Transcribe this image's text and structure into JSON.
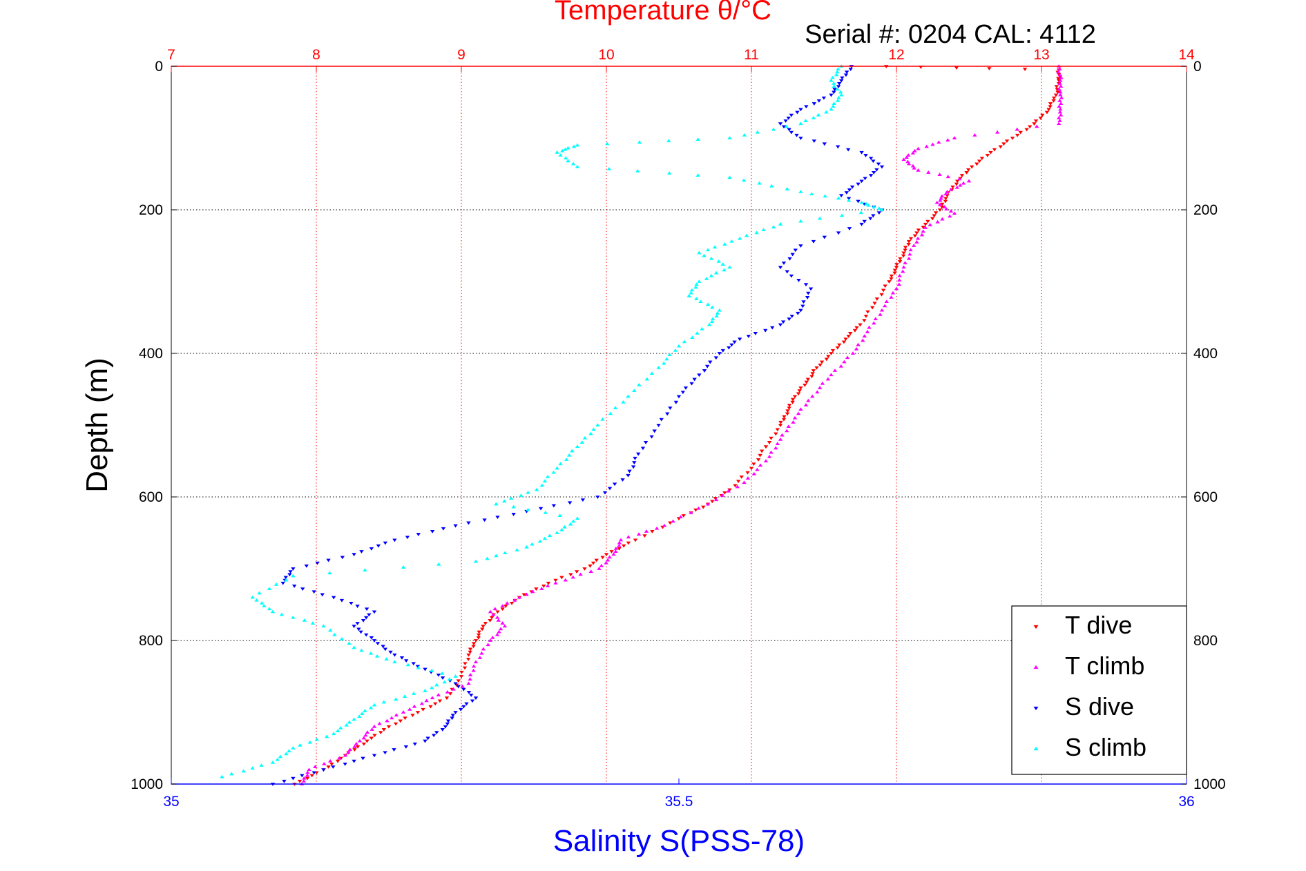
{
  "chart_data": {
    "type": "scatter",
    "title": "Temperature θ/°C",
    "subtitle": "Serial #: 0204  CAL: 4112",
    "ylabel": "Depth (m)",
    "xlabel_bottom": "Salinity S(PSS-78)",
    "x_top_axis": {
      "label": "Temperature θ/°C",
      "range": [
        7,
        14
      ],
      "ticks": [
        "7",
        "8",
        "9",
        "10",
        "11",
        "12",
        "13",
        "14"
      ],
      "color": "#ff0000"
    },
    "x_bottom_axis": {
      "label": "Salinity S(PSS-78)",
      "range": [
        35,
        36
      ],
      "ticks": [
        "35",
        "35.5",
        "36"
      ],
      "color": "#0000ff"
    },
    "y_axis": {
      "label": "Depth (m)",
      "range": [
        0,
        1000
      ],
      "reversed": true,
      "ticks": [
        "0",
        "200",
        "400",
        "600",
        "800",
        "1000"
      ]
    },
    "grid": true,
    "legend_position": "bottom-right",
    "series": [
      {
        "name": "T dive",
        "axis": "temperature",
        "color": "#ff0000",
        "marker": "down-triangle",
        "points": [
          [
            11.93,
            0
          ],
          [
            13.12,
            5
          ],
          [
            13.12,
            20
          ],
          [
            13.1,
            40
          ],
          [
            13.05,
            60
          ],
          [
            12.95,
            80
          ],
          [
            12.8,
            100
          ],
          [
            12.65,
            120
          ],
          [
            12.52,
            140
          ],
          [
            12.42,
            160
          ],
          [
            12.35,
            180
          ],
          [
            12.3,
            200
          ],
          [
            12.2,
            220
          ],
          [
            12.1,
            240
          ],
          [
            12.05,
            260
          ],
          [
            12.0,
            280
          ],
          [
            11.95,
            300
          ],
          [
            11.85,
            330
          ],
          [
            11.75,
            360
          ],
          [
            11.65,
            380
          ],
          [
            11.55,
            400
          ],
          [
            11.45,
            420
          ],
          [
            11.38,
            440
          ],
          [
            11.3,
            460
          ],
          [
            11.25,
            480
          ],
          [
            11.2,
            500
          ],
          [
            11.1,
            530
          ],
          [
            11.0,
            560
          ],
          [
            10.85,
            590
          ],
          [
            10.7,
            610
          ],
          [
            10.5,
            630
          ],
          [
            10.2,
            660
          ],
          [
            10.0,
            680
          ],
          [
            9.85,
            700
          ],
          [
            9.6,
            720
          ],
          [
            9.4,
            740
          ],
          [
            9.25,
            760
          ],
          [
            9.15,
            780
          ],
          [
            9.1,
            800
          ],
          [
            9.05,
            820
          ],
          [
            9.0,
            850
          ],
          [
            8.9,
            880
          ],
          [
            8.7,
            900
          ],
          [
            8.5,
            920
          ],
          [
            8.35,
            940
          ],
          [
            8.2,
            960
          ],
          [
            8.05,
            980
          ],
          [
            7.85,
            1000
          ]
        ]
      },
      {
        "name": "T climb",
        "axis": "temperature",
        "color": "#ff00ff",
        "marker": "up-triangle",
        "points": [
          [
            13.12,
            0
          ],
          [
            13.13,
            20
          ],
          [
            13.13,
            40
          ],
          [
            13.13,
            60
          ],
          [
            13.12,
            80
          ],
          [
            12.4,
            100
          ],
          [
            12.15,
            115
          ],
          [
            12.05,
            130
          ],
          [
            12.15,
            145
          ],
          [
            12.5,
            160
          ],
          [
            12.35,
            175
          ],
          [
            12.28,
            190
          ],
          [
            12.4,
            205
          ],
          [
            12.2,
            225
          ],
          [
            12.12,
            250
          ],
          [
            12.05,
            280
          ],
          [
            12.0,
            310
          ],
          [
            11.9,
            340
          ],
          [
            11.8,
            370
          ],
          [
            11.7,
            400
          ],
          [
            11.55,
            430
          ],
          [
            11.42,
            460
          ],
          [
            11.3,
            490
          ],
          [
            11.2,
            520
          ],
          [
            11.1,
            550
          ],
          [
            10.95,
            580
          ],
          [
            10.7,
            610
          ],
          [
            10.4,
            640
          ],
          [
            10.1,
            660
          ],
          [
            10.05,
            680
          ],
          [
            9.95,
            700
          ],
          [
            9.65,
            720
          ],
          [
            9.4,
            740
          ],
          [
            9.2,
            760
          ],
          [
            9.3,
            780
          ],
          [
            9.2,
            800
          ],
          [
            9.1,
            830
          ],
          [
            9.05,
            860
          ],
          [
            8.8,
            880
          ],
          [
            8.6,
            900
          ],
          [
            8.4,
            920
          ],
          [
            8.3,
            940
          ],
          [
            8.2,
            960
          ],
          [
            7.95,
            980
          ],
          [
            7.9,
            1000
          ]
        ]
      },
      {
        "name": "S dive",
        "axis": "salinity",
        "color": "#0000ff",
        "marker": "down-triangle",
        "points": [
          [
            35.67,
            0
          ],
          [
            35.66,
            20
          ],
          [
            35.65,
            40
          ],
          [
            35.62,
            60
          ],
          [
            35.6,
            80
          ],
          [
            35.62,
            100
          ],
          [
            35.68,
            120
          ],
          [
            35.7,
            140
          ],
          [
            35.68,
            160
          ],
          [
            35.66,
            180
          ],
          [
            35.7,
            200
          ],
          [
            35.68,
            220
          ],
          [
            35.62,
            250
          ],
          [
            35.6,
            280
          ],
          [
            35.63,
            310
          ],
          [
            35.62,
            340
          ],
          [
            35.6,
            360
          ],
          [
            35.56,
            380
          ],
          [
            35.54,
            400
          ],
          [
            35.52,
            430
          ],
          [
            35.5,
            460
          ],
          [
            35.48,
            500
          ],
          [
            35.46,
            540
          ],
          [
            35.45,
            570
          ],
          [
            35.42,
            600
          ],
          [
            35.35,
            620
          ],
          [
            35.28,
            640
          ],
          [
            35.22,
            660
          ],
          [
            35.18,
            680
          ],
          [
            35.12,
            700
          ],
          [
            35.11,
            720
          ],
          [
            35.16,
            740
          ],
          [
            35.2,
            760
          ],
          [
            35.18,
            780
          ],
          [
            35.2,
            800
          ],
          [
            35.22,
            820
          ],
          [
            35.25,
            840
          ],
          [
            35.28,
            860
          ],
          [
            35.3,
            880
          ],
          [
            35.28,
            900
          ],
          [
            35.27,
            920
          ],
          [
            35.25,
            940
          ],
          [
            35.2,
            960
          ],
          [
            35.15,
            980
          ],
          [
            35.1,
            1000
          ]
        ]
      },
      {
        "name": "S climb",
        "axis": "salinity",
        "color": "#00ffff",
        "marker": "up-triangle",
        "points": [
          [
            35.66,
            0
          ],
          [
            35.65,
            20
          ],
          [
            35.66,
            40
          ],
          [
            35.65,
            60
          ],
          [
            35.62,
            80
          ],
          [
            35.55,
            100
          ],
          [
            35.4,
            110
          ],
          [
            35.38,
            120
          ],
          [
            35.4,
            140
          ],
          [
            35.55,
            155
          ],
          [
            35.62,
            175
          ],
          [
            35.68,
            190
          ],
          [
            35.7,
            200
          ],
          [
            35.6,
            220
          ],
          [
            35.56,
            240
          ],
          [
            35.52,
            260
          ],
          [
            35.55,
            280
          ],
          [
            35.52,
            300
          ],
          [
            35.51,
            320
          ],
          [
            35.54,
            340
          ],
          [
            35.53,
            360
          ],
          [
            35.5,
            390
          ],
          [
            35.48,
            420
          ],
          [
            35.45,
            460
          ],
          [
            35.42,
            500
          ],
          [
            35.4,
            530
          ],
          [
            35.38,
            560
          ],
          [
            35.36,
            590
          ],
          [
            35.32,
            610
          ],
          [
            35.4,
            630
          ],
          [
            35.38,
            650
          ],
          [
            35.35,
            670
          ],
          [
            35.3,
            690
          ],
          [
            35.12,
            710
          ],
          [
            35.08,
            740
          ],
          [
            35.1,
            760
          ],
          [
            35.15,
            780
          ],
          [
            35.18,
            810
          ],
          [
            35.22,
            830
          ],
          [
            35.28,
            850
          ],
          [
            35.25,
            870
          ],
          [
            35.2,
            890
          ],
          [
            35.18,
            910
          ],
          [
            35.16,
            930
          ],
          [
            35.12,
            950
          ],
          [
            35.1,
            970
          ],
          [
            35.05,
            990
          ]
        ]
      }
    ],
    "legend": [
      "T dive",
      "T climb",
      "S dive",
      "S climb"
    ]
  }
}
